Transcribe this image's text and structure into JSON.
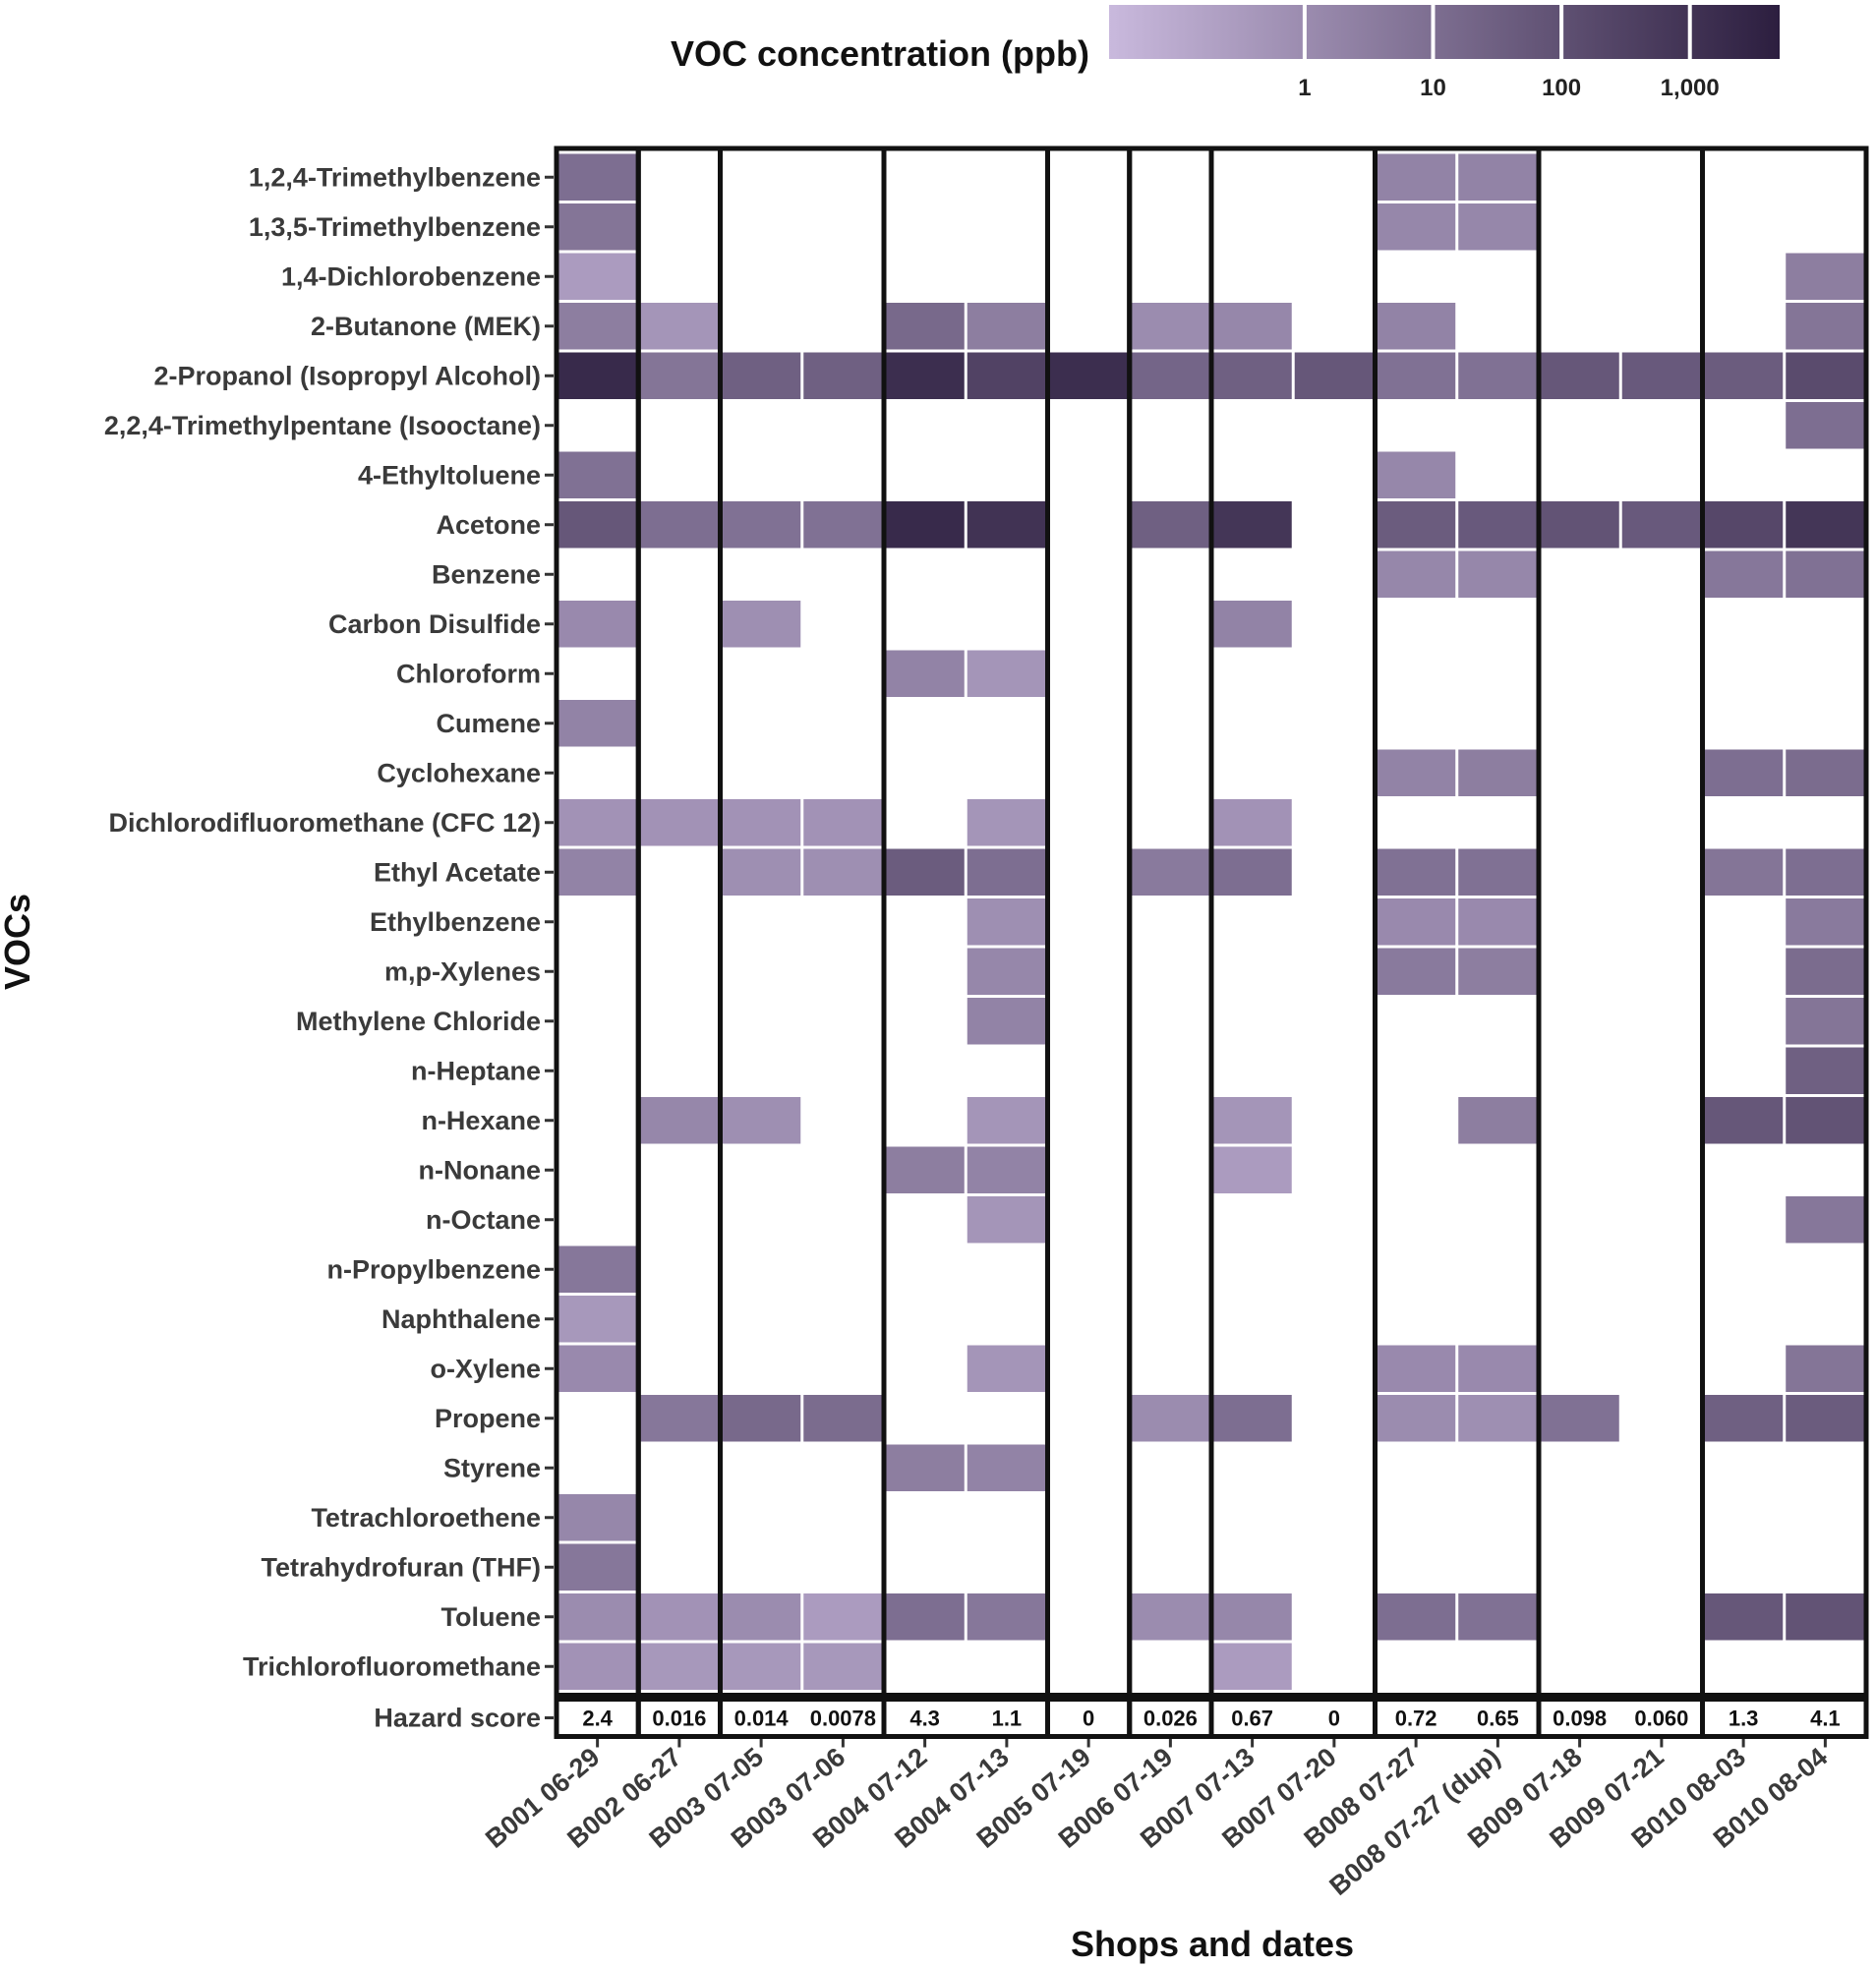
{
  "chart_data": {
    "type": "heatmap",
    "title": "",
    "xlabel": "Shops and dates",
    "ylabel": "VOCs",
    "legend": {
      "title": "VOC concentration (ppb)",
      "scale": "log10",
      "ticks": [
        "1",
        "10",
        "100",
        "1,000"
      ],
      "tick_values": [
        1,
        10,
        100,
        1000
      ],
      "range": [
        0.03,
        5000
      ],
      "color_low": "#c9b9dd",
      "color_high": "#2c1e3f",
      "placement": "top-right"
    },
    "columns": [
      "B001 06-29",
      "B002 06-27",
      "B003 07-05",
      "B003 07-06",
      "B004 07-12",
      "B004 07-13",
      "B005 07-19",
      "B006 07-19",
      "B007 07-13",
      "B007 07-20",
      "B008 07-27",
      "B008 07-27 (dup)",
      "B009 07-18",
      "B009 07-21",
      "B010 08-03",
      "B010 08-04"
    ],
    "groups": [
      "B001",
      "B002",
      "B003",
      "B004",
      "B005",
      "B006",
      "B007",
      "B008",
      "B009",
      "B010"
    ],
    "rows": [
      "1,2,4-Trimethylbenzene",
      "1,3,5-Trimethylbenzene",
      "1,4-Dichlorobenzene",
      "2-Butanone (MEK)",
      "2-Propanol (Isopropyl Alcohol)",
      "2,2,4-Trimethylpentane (Isooctane)",
      "4-Ethyltoluene",
      "Acetone",
      "Benzene",
      "Carbon Disulfide",
      "Chloroform",
      "Cumene",
      "Cyclohexane",
      "Dichlorodifluoromethane (CFC 12)",
      "Ethyl Acetate",
      "Ethylbenzene",
      "m,p-Xylenes",
      "Methylene Chloride",
      "n-Heptane",
      "n-Hexane",
      "n-Nonane",
      "n-Octane",
      "n-Propylbenzene",
      "Naphthalene",
      "o-Xylene",
      "Propene",
      "Styrene",
      "Tetrachloroethene",
      "Tetrahydrofuran (THF)",
      "Toluene",
      "Trichlorofluoromethane"
    ],
    "values": [
      [
        10,
        null,
        null,
        null,
        null,
        null,
        null,
        null,
        null,
        null,
        2,
        2,
        null,
        null,
        null,
        null
      ],
      [
        6,
        null,
        null,
        null,
        null,
        null,
        null,
        null,
        null,
        null,
        1.5,
        1.5,
        null,
        null,
        null,
        null
      ],
      [
        0.3,
        null,
        null,
        null,
        null,
        null,
        null,
        null,
        null,
        null,
        null,
        null,
        null,
        null,
        null,
        3
      ],
      [
        3,
        0.5,
        null,
        null,
        15,
        3,
        null,
        1,
        1.5,
        null,
        2,
        null,
        null,
        null,
        null,
        6
      ],
      [
        2000,
        6,
        30,
        30,
        1500,
        300,
        1500,
        20,
        30,
        60,
        8,
        8,
        60,
        50,
        40,
        150
      ],
      [
        null,
        null,
        null,
        null,
        null,
        null,
        null,
        null,
        null,
        null,
        null,
        null,
        null,
        null,
        null,
        10
      ],
      [
        8,
        null,
        null,
        null,
        null,
        null,
        null,
        null,
        null,
        null,
        1.5,
        null,
        null,
        null,
        null,
        null
      ],
      [
        60,
        10,
        8,
        8,
        2000,
        1000,
        null,
        30,
        800,
        null,
        40,
        50,
        80,
        50,
        200,
        800
      ],
      [
        null,
        null,
        null,
        null,
        null,
        null,
        null,
        null,
        null,
        null,
        1.5,
        1.5,
        null,
        null,
        5,
        8
      ],
      [
        1.2,
        null,
        0.8,
        null,
        null,
        null,
        null,
        null,
        2,
        null,
        null,
        null,
        null,
        null,
        null,
        null
      ],
      [
        null,
        null,
        null,
        null,
        2,
        0.5,
        null,
        null,
        null,
        null,
        null,
        null,
        null,
        null,
        null,
        null
      ],
      [
        2,
        null,
        null,
        null,
        null,
        null,
        null,
        null,
        null,
        null,
        null,
        null,
        null,
        null,
        null,
        null
      ],
      [
        null,
        null,
        null,
        null,
        null,
        null,
        null,
        null,
        null,
        null,
        2,
        3,
        null,
        null,
        10,
        12
      ],
      [
        0.6,
        0.6,
        0.6,
        0.6,
        null,
        0.5,
        null,
        null,
        0.6,
        null,
        null,
        null,
        null,
        null,
        null,
        null
      ],
      [
        2,
        null,
        0.8,
        0.8,
        40,
        10,
        null,
        4,
        10,
        null,
        8,
        8,
        null,
        null,
        6,
        10
      ],
      [
        null,
        null,
        null,
        null,
        null,
        0.8,
        null,
        null,
        null,
        null,
        1.2,
        1.2,
        null,
        null,
        null,
        4
      ],
      [
        null,
        null,
        null,
        null,
        null,
        1.5,
        null,
        null,
        null,
        null,
        4,
        3,
        null,
        null,
        null,
        12
      ],
      [
        null,
        null,
        null,
        null,
        null,
        2,
        null,
        null,
        null,
        null,
        null,
        null,
        null,
        null,
        null,
        6
      ],
      [
        null,
        null,
        null,
        null,
        null,
        null,
        null,
        null,
        null,
        null,
        null,
        null,
        null,
        null,
        null,
        30
      ],
      [
        null,
        1.5,
        0.8,
        null,
        null,
        0.5,
        null,
        null,
        0.5,
        null,
        null,
        3,
        null,
        null,
        60,
        80
      ],
      [
        null,
        null,
        null,
        null,
        3,
        2,
        null,
        null,
        0.3,
        null,
        null,
        null,
        null,
        null,
        null,
        null
      ],
      [
        null,
        null,
        null,
        null,
        null,
        0.5,
        null,
        null,
        null,
        null,
        null,
        null,
        null,
        null,
        null,
        5
      ],
      [
        5,
        null,
        null,
        null,
        null,
        null,
        null,
        null,
        null,
        null,
        null,
        null,
        null,
        null,
        null,
        null
      ],
      [
        0.4,
        null,
        null,
        null,
        null,
        null,
        null,
        null,
        null,
        null,
        null,
        null,
        null,
        null,
        null,
        null
      ],
      [
        1.2,
        null,
        null,
        null,
        null,
        0.5,
        null,
        null,
        null,
        null,
        1.2,
        1.2,
        null,
        null,
        null,
        6
      ],
      [
        null,
        5,
        15,
        12,
        null,
        null,
        null,
        1,
        10,
        null,
        1,
        0.8,
        8,
        null,
        30,
        40
      ],
      [
        null,
        null,
        null,
        null,
        3,
        2,
        null,
        null,
        null,
        null,
        null,
        null,
        null,
        null,
        null,
        null
      ],
      [
        1.5,
        null,
        null,
        null,
        null,
        null,
        null,
        null,
        null,
        null,
        null,
        null,
        null,
        null,
        null,
        null
      ],
      [
        5,
        null,
        null,
        null,
        null,
        null,
        null,
        null,
        null,
        null,
        null,
        null,
        null,
        null,
        null,
        null
      ],
      [
        1,
        0.6,
        1,
        0.3,
        10,
        5,
        null,
        1,
        1.5,
        null,
        10,
        8,
        null,
        null,
        60,
        80
      ],
      [
        0.6,
        0.4,
        0.4,
        0.4,
        null,
        null,
        null,
        null,
        0.3,
        null,
        null,
        null,
        null,
        null,
        null,
        null
      ]
    ],
    "hazard_label": "Hazard score",
    "hazard_scores": [
      "2.4",
      "0.016",
      "0.014",
      "0.0078",
      "4.3",
      "1.1",
      "0",
      "0.026",
      "0.67",
      "0",
      "0.72",
      "0.65",
      "0.098",
      "0.060",
      "1.3",
      "4.1"
    ]
  }
}
